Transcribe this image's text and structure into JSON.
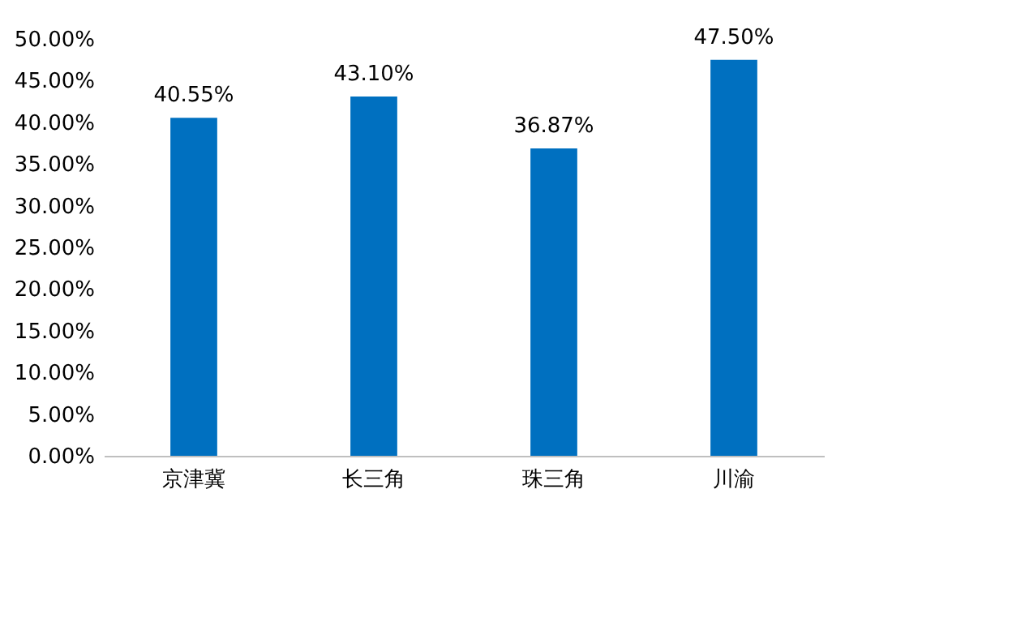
{
  "chart_data": {
    "type": "bar",
    "categories": [
      "京津冀",
      "长三角",
      "珠三角",
      "川渝"
    ],
    "values": [
      40.55,
      43.1,
      36.87,
      47.5
    ],
    "color": "#0070c0",
    "value_labels": [
      "40.55%",
      "43.10%",
      "36.87%",
      "47.50%"
    ],
    "ylim": [
      0,
      50
    ],
    "yticks": [
      {
        "value": 0,
        "label": "0.00%"
      },
      {
        "value": 5,
        "label": "5.00%"
      },
      {
        "value": 10,
        "label": "10.00%"
      },
      {
        "value": 15,
        "label": "15.00%"
      },
      {
        "value": 20,
        "label": "20.00%"
      },
      {
        "value": 25,
        "label": "25.00%"
      },
      {
        "value": 30,
        "label": "30.00%"
      },
      {
        "value": 35,
        "label": "35.00%"
      },
      {
        "value": 40,
        "label": "40.00%"
      },
      {
        "value": 45,
        "label": "45.00%"
      },
      {
        "value": 50,
        "label": "50.00%"
      }
    ],
    "grid": false
  }
}
